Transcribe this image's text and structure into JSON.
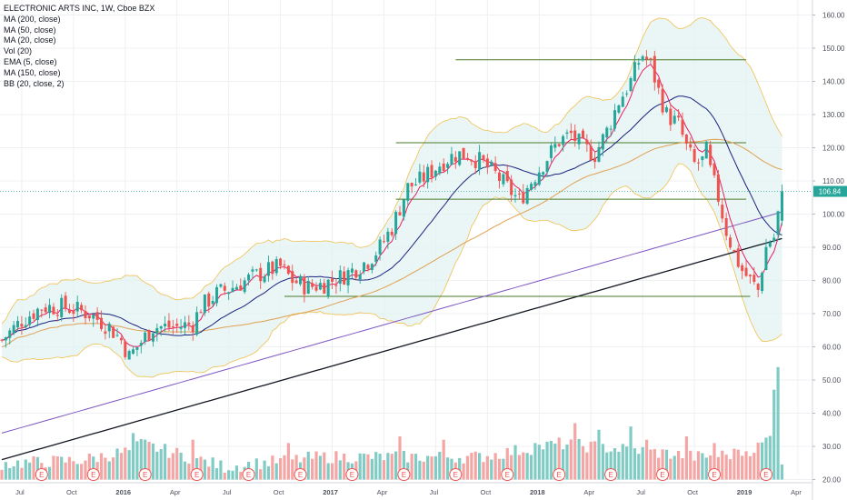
{
  "chart_data": {
    "type": "candlestick",
    "title": "ELECTRONIC ARTS INC, 1W, Cboe BZX",
    "indicators": [
      "MA (200, close)",
      "MA (50, close)",
      "MA (20, close)",
      "Vol (20)",
      "EMA (5, close)",
      "MA (150, close)",
      "BB (20, close, 2)"
    ],
    "last_price_label": "106.84",
    "last_price": 106.84,
    "ylim": [
      20,
      165
    ],
    "y_ticks": [
      20,
      30,
      40,
      50,
      60,
      70,
      80,
      90,
      100,
      110,
      120,
      130,
      140,
      150,
      160
    ],
    "y_tick_labels": [
      "20.00",
      "30.00",
      "40.00",
      "50.00",
      "60.00",
      "70.00",
      "80.00",
      "90.00",
      "100.00",
      "110.00",
      "120.00",
      "130.00",
      "140.00",
      "150.00",
      "160.00"
    ],
    "x_tick_labels": [
      "Jul",
      "Oct",
      "2016",
      "Apr",
      "Jul",
      "Oct",
      "2017",
      "Apr",
      "Jul",
      "Oct",
      "2018",
      "Apr",
      "Jul",
      "Oct",
      "2019",
      "Apr"
    ],
    "x_tick_weeks": [
      5,
      18,
      31,
      44,
      57,
      70,
      83,
      96,
      109,
      122,
      135,
      148,
      161,
      174,
      187,
      200
    ],
    "weeks_total": 196,
    "price_path": [
      [
        0,
        62
      ],
      [
        5,
        68
      ],
      [
        10,
        72
      ],
      [
        16,
        72
      ],
      [
        22,
        70
      ],
      [
        27,
        66
      ],
      [
        30,
        62
      ],
      [
        32,
        57
      ],
      [
        34,
        60
      ],
      [
        38,
        66
      ],
      [
        44,
        66
      ],
      [
        48,
        67
      ],
      [
        50,
        72
      ],
      [
        54,
        76
      ],
      [
        58,
        78
      ],
      [
        63,
        81
      ],
      [
        67,
        83
      ],
      [
        70,
        84
      ],
      [
        73,
        80
      ],
      [
        77,
        78
      ],
      [
        81,
        79
      ],
      [
        85,
        81
      ],
      [
        88,
        83
      ],
      [
        92,
        86
      ],
      [
        95,
        90
      ],
      [
        98,
        96
      ],
      [
        100,
        102
      ],
      [
        102,
        108
      ],
      [
        105,
        110
      ],
      [
        108,
        113
      ],
      [
        111,
        116
      ],
      [
        114,
        118
      ],
      [
        117,
        118
      ],
      [
        120,
        116
      ],
      [
        124,
        112
      ],
      [
        127,
        108
      ],
      [
        130,
        104
      ],
      [
        133,
        110
      ],
      [
        137,
        117
      ],
      [
        140,
        122
      ],
      [
        143,
        124
      ],
      [
        146,
        120
      ],
      [
        149,
        118
      ],
      [
        152,
        125
      ],
      [
        155,
        134
      ],
      [
        158,
        140
      ],
      [
        160,
        146
      ],
      [
        161,
        148
      ],
      [
        163,
        145
      ],
      [
        165,
        137
      ],
      [
        167,
        130
      ],
      [
        170,
        127
      ],
      [
        172,
        120
      ],
      [
        174,
        115
      ],
      [
        176,
        116
      ],
      [
        177,
        119
      ],
      [
        178,
        113
      ],
      [
        180,
        105
      ],
      [
        182,
        95
      ],
      [
        184,
        88
      ],
      [
        186,
        83
      ],
      [
        188,
        80
      ],
      [
        190,
        77
      ],
      [
        191,
        84
      ],
      [
        192,
        90
      ],
      [
        193,
        92
      ],
      [
        194,
        93
      ],
      [
        195,
        100
      ],
      [
        196,
        106.84
      ]
    ],
    "volume_path": [
      [
        0,
        24
      ],
      [
        20,
        25
      ],
      [
        33,
        28
      ],
      [
        35,
        30
      ],
      [
        56,
        23
      ],
      [
        80,
        26
      ],
      [
        120,
        26
      ],
      [
        140,
        30
      ],
      [
        160,
        28
      ],
      [
        175,
        26
      ],
      [
        185,
        27
      ],
      [
        190,
        29
      ],
      [
        193,
        32
      ],
      [
        194,
        48
      ],
      [
        195,
        54
      ],
      [
        196,
        25
      ]
    ],
    "volume_spikes": [
      [
        33,
        34
      ],
      [
        48,
        32
      ],
      [
        72,
        31
      ],
      [
        100,
        33
      ],
      [
        111,
        32
      ],
      [
        134,
        31
      ],
      [
        144,
        37
      ],
      [
        150,
        35
      ],
      [
        158,
        36
      ],
      [
        162,
        32
      ],
      [
        172,
        33
      ],
      [
        179,
        31
      ],
      [
        185,
        29
      ]
    ],
    "horizontal_levels": [
      {
        "y": 146.5,
        "from": 114,
        "to": 187
      },
      {
        "y": 121.5,
        "from": 99,
        "to": 187
      },
      {
        "y": 104.5,
        "from": 99,
        "to": 187
      },
      {
        "y": 75.2,
        "from": 71,
        "to": 188
      }
    ],
    "earnings_weeks": [
      10,
      23,
      36,
      49,
      62,
      75,
      88,
      101,
      114,
      127,
      140,
      153,
      166,
      179,
      192
    ],
    "earnings_label": "E",
    "colors": {
      "up": "#26a69a",
      "down": "#ef5350",
      "vol_up": "#80cbc4",
      "vol_down": "#f4a6a5",
      "ma200": "#131722",
      "ma150": "#7e57c2",
      "ma50": "#e0a050",
      "ma20": "#1a237e",
      "ema5": "#e91e63",
      "bb_band": "#f0c050",
      "bb_fill": "#e0f2f1",
      "level": "#4a7a2a",
      "price_label_bg": "#26a69a"
    }
  }
}
